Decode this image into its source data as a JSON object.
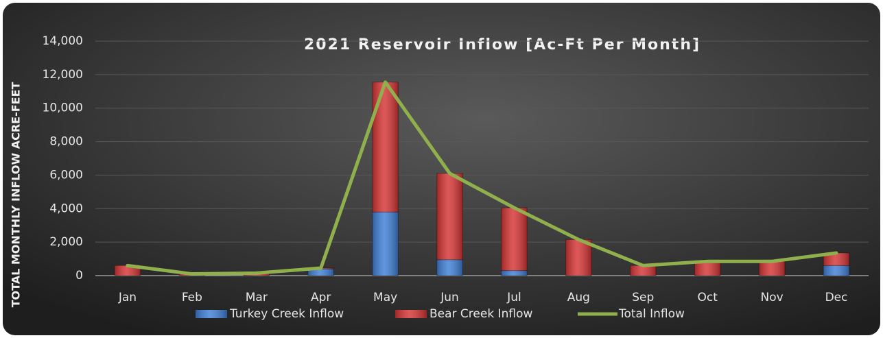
{
  "chart_data": {
    "type": "stacked-bar-line",
    "title": "2021 Reservoir Inflow [Ac-Ft Per Month]",
    "y_label": "TOTAL MONTHLY INFLOW ACRE-FEET",
    "categories": [
      "Jan",
      "Feb",
      "Mar",
      "Apr",
      "May",
      "Jun",
      "Jul",
      "Aug",
      "Sep",
      "Oct",
      "Nov",
      "Dec"
    ],
    "series": [
      {
        "name": "Turkey Creek Inflow",
        "color": "#3f7fd6",
        "kind": "bar",
        "values": [
          0,
          0,
          0,
          400,
          3800,
          950,
          300,
          0,
          0,
          0,
          0,
          600
        ]
      },
      {
        "name": "Bear Creek Inflow",
        "color": "#d63434",
        "kind": "bar",
        "values": [
          600,
          100,
          150,
          50,
          7750,
          5150,
          3750,
          2150,
          600,
          850,
          850,
          750
        ]
      },
      {
        "name": "Total Inflow",
        "color": "#8fb04c",
        "kind": "line",
        "values": [
          600,
          100,
          150,
          450,
          11550,
          6100,
          4050,
          2150,
          600,
          850,
          850,
          1350
        ]
      }
    ],
    "ylim": [
      0,
      14000
    ],
    "yticks": [
      0,
      {
        "value": 2000,
        "label": "2,000"
      },
      {
        "value": 4000,
        "label": "4,000"
      },
      {
        "value": 6000,
        "label": "6,000"
      },
      {
        "value": 8000,
        "label": "8,000"
      },
      {
        "value": 10000,
        "label": "10,000"
      },
      {
        "value": 12000,
        "label": "12,000"
      },
      {
        "value": 14000,
        "label": "14,000"
      }
    ],
    "grid": true
  }
}
